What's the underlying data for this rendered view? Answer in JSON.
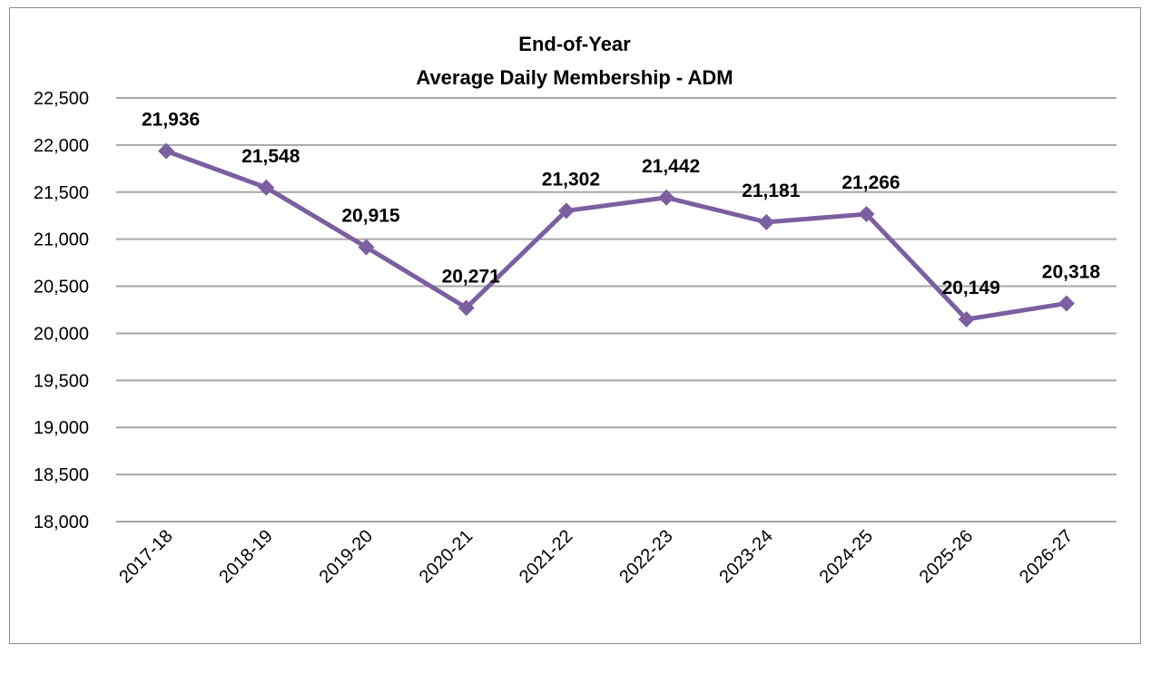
{
  "chart_data": {
    "type": "line",
    "title": [
      "End-of-Year",
      "Average Daily Membership - ADM"
    ],
    "xlabel": "",
    "ylabel": "",
    "categories": [
      "2017-18",
      "2018-19",
      "2019-20",
      "2020-21",
      "2021-22",
      "2022-23",
      "2023-24",
      "2024-25",
      "2025-26",
      "2026-27"
    ],
    "series": [
      {
        "name": "ADM",
        "values": [
          21936,
          21548,
          20915,
          20271,
          21302,
          21442,
          21181,
          21266,
          20149,
          20318
        ],
        "labels": [
          "21,936",
          "21,548",
          "20,915",
          "20,271",
          "21,302",
          "21,442",
          "21,181",
          "21,266",
          "20,149",
          "20,318"
        ]
      }
    ],
    "ylim": [
      18000,
      22500
    ],
    "yticks": [
      18000,
      18500,
      19000,
      19500,
      20000,
      20500,
      21000,
      21500,
      22000,
      22500
    ],
    "ytick_labels": [
      "18,000",
      "18,500",
      "19,000",
      "19,500",
      "20,000",
      "20,500",
      "21,000",
      "21,500",
      "22,000",
      "22,500"
    ],
    "grid": true,
    "legend": "none",
    "colors": {
      "line": "#7B5FA0",
      "grid": "#A6A6A6",
      "border": "#8C8C8C"
    }
  }
}
